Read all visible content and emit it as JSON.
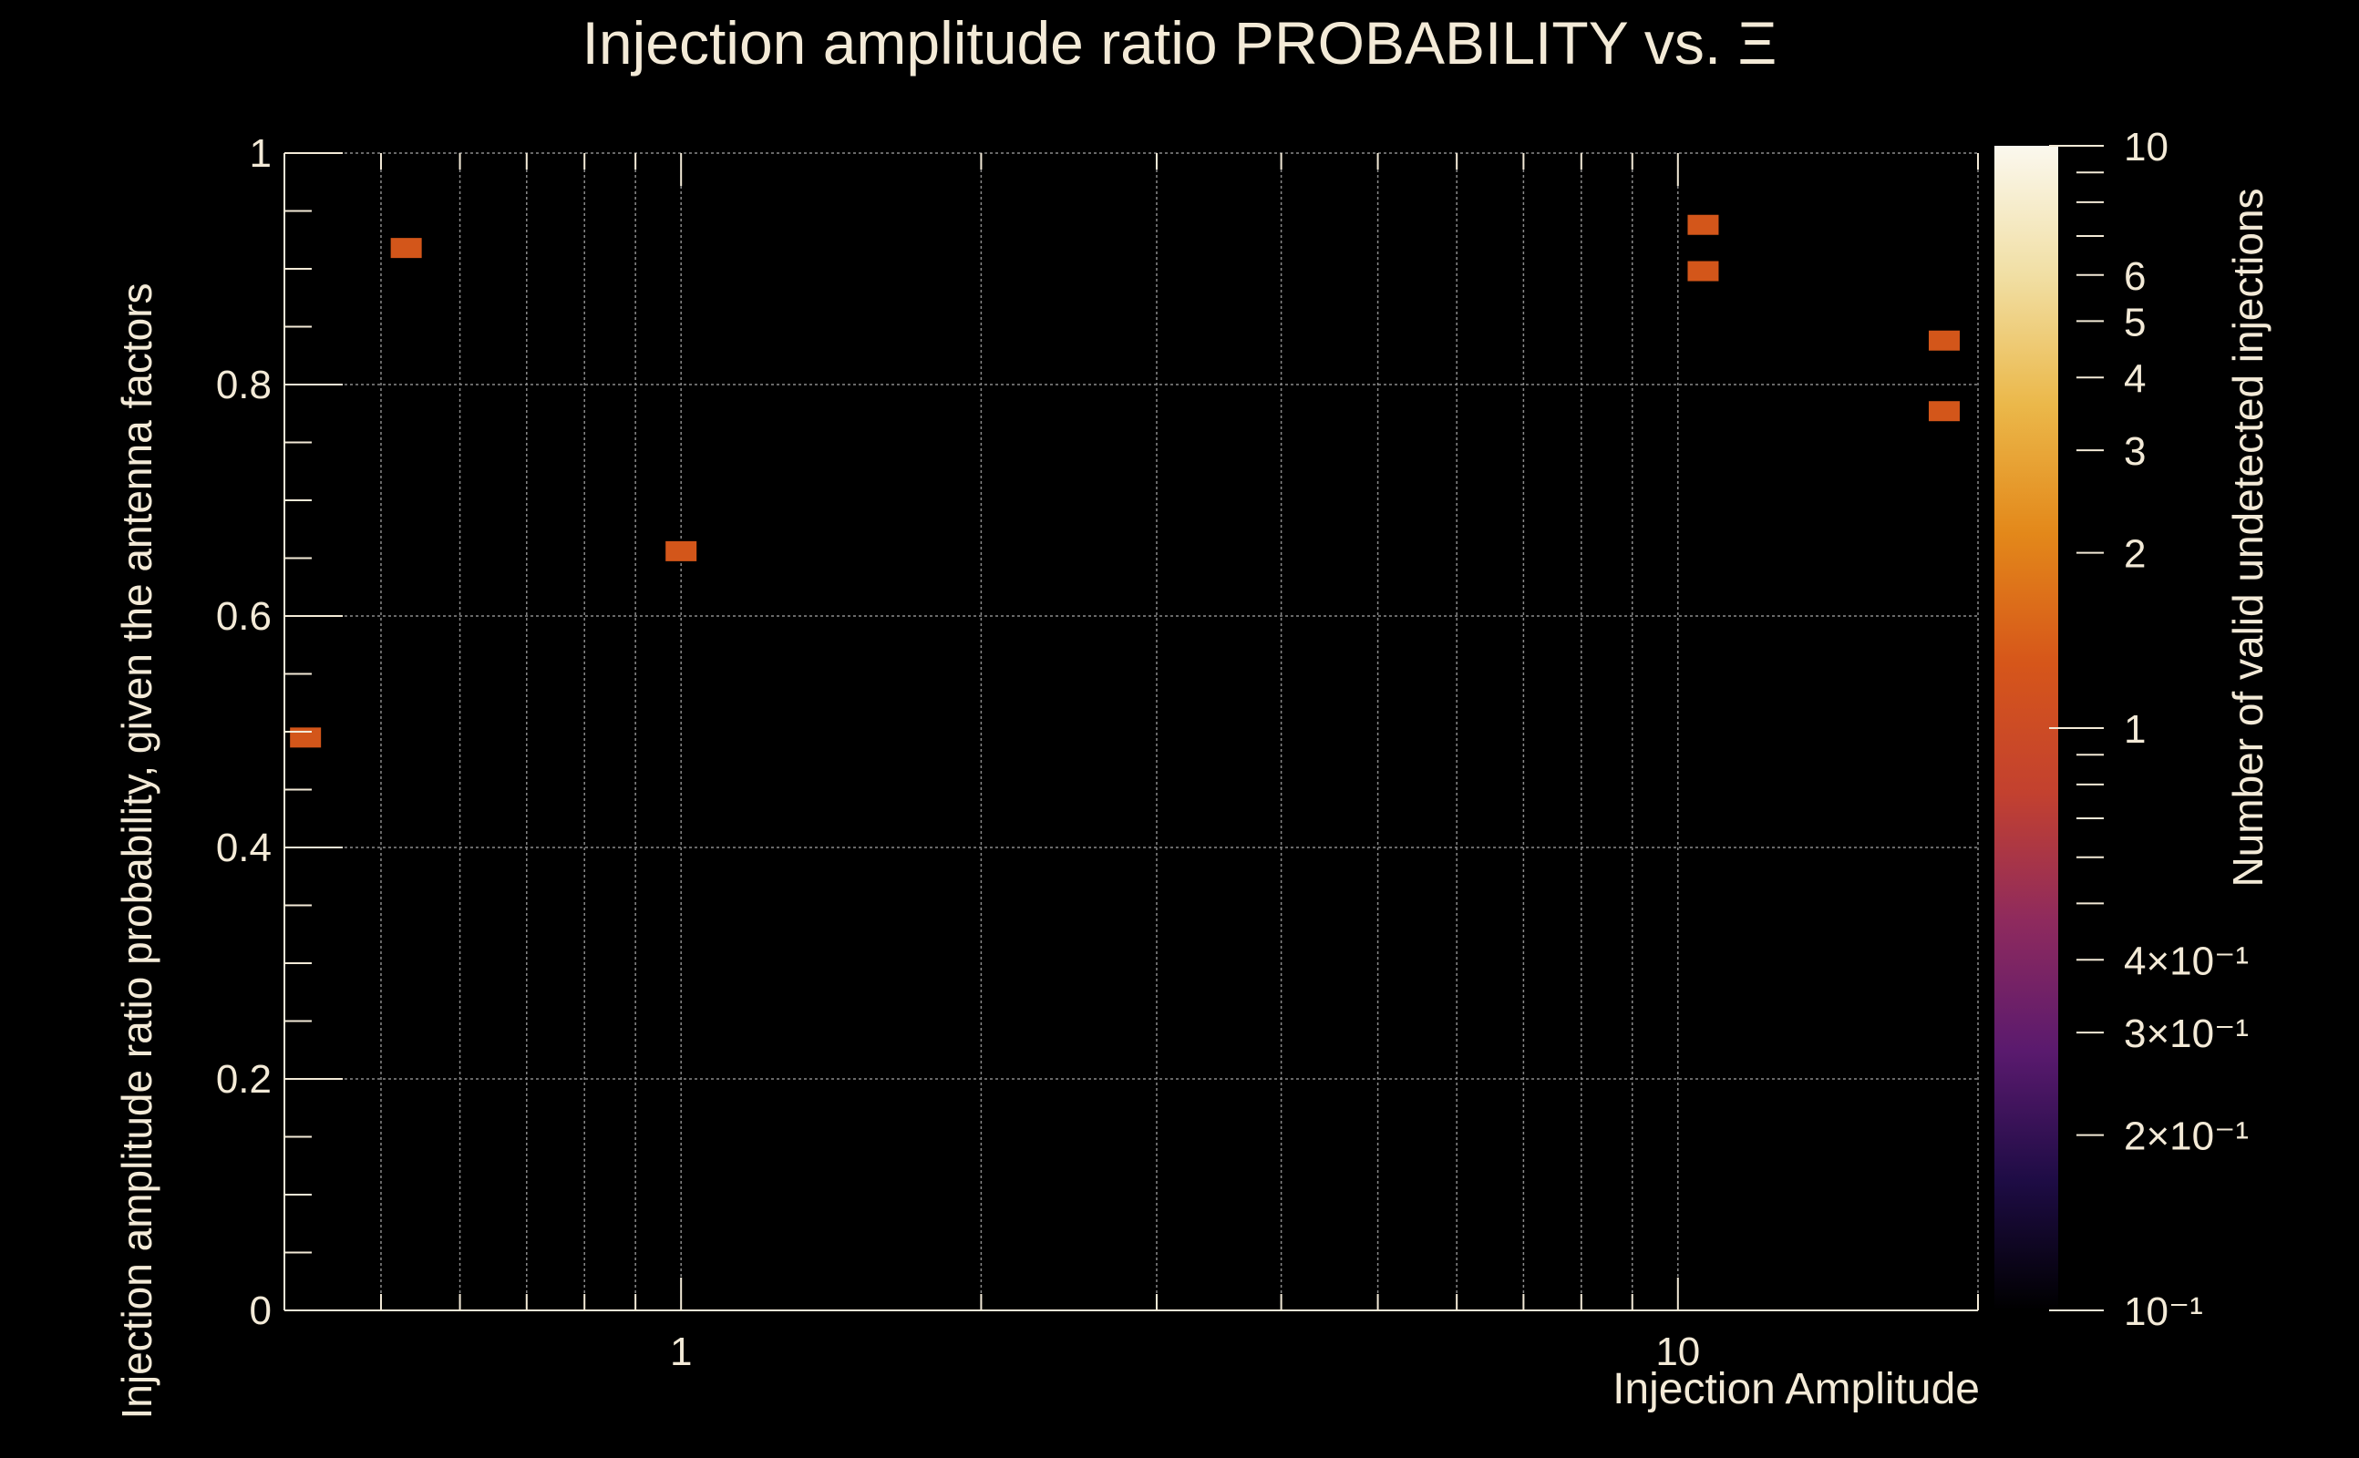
{
  "chart_data": {
    "type": "heatmap",
    "title": "Injection amplitude ratio PROBABILITY vs.  Ξ",
    "xlabel": "Injection Amplitude",
    "ylabel": "Injection amplitude ratio probability, given the antenna factors",
    "zlabel": "Number of valid undetected injections",
    "x_scale": "log",
    "xlim": [
      0.4,
      20
    ],
    "ylim": [
      0,
      1
    ],
    "zlim": [
      0.1,
      10
    ],
    "z_scale": "log",
    "grid": true,
    "x_tick_labels": [
      {
        "value": 1,
        "label": "1"
      },
      {
        "value": 10,
        "label": "10"
      }
    ],
    "y_tick_labels": [
      {
        "value": 0,
        "label": "0"
      },
      {
        "value": 0.2,
        "label": "0.2"
      },
      {
        "value": 0.4,
        "label": "0.4"
      },
      {
        "value": 0.6,
        "label": "0.6"
      },
      {
        "value": 0.8,
        "label": "0.8"
      },
      {
        "value": 1,
        "label": "1"
      }
    ],
    "z_tick_labels": [
      {
        "value": 10,
        "label": "10"
      },
      {
        "value": 6,
        "label": "6"
      },
      {
        "value": 5,
        "label": "5"
      },
      {
        "value": 4,
        "label": "4"
      },
      {
        "value": 3,
        "label": "3"
      },
      {
        "value": 2,
        "label": "2"
      },
      {
        "value": 1,
        "label": "1"
      },
      {
        "value": 0.4,
        "label": "4×10⁻¹"
      },
      {
        "value": 0.3,
        "label": "3×10⁻¹"
      },
      {
        "value": 0.2,
        "label": "2×10⁻¹"
      },
      {
        "value": 0.1,
        "label": "10⁻¹"
      }
    ],
    "cells": [
      {
        "x": 0.42,
        "y": 0.495,
        "z": 1
      },
      {
        "x": 0.53,
        "y": 0.918,
        "z": 1
      },
      {
        "x": 1.0,
        "y": 0.656,
        "z": 1
      },
      {
        "x": 10.6,
        "y": 0.938,
        "z": 1
      },
      {
        "x": 10.6,
        "y": 0.898,
        "z": 1
      },
      {
        "x": 18.5,
        "y": 0.838,
        "z": 1
      },
      {
        "x": 18.5,
        "y": 0.777,
        "z": 1
      }
    ],
    "cell_color": "#d3561a",
    "colorscale": [
      "#000000",
      "#1e0c45",
      "#5a1a6e",
      "#8e2a5e",
      "#c3412f",
      "#d6561a",
      "#e3881a",
      "#ebb84a",
      "#f1dfa4",
      "#fbf8ee"
    ]
  }
}
